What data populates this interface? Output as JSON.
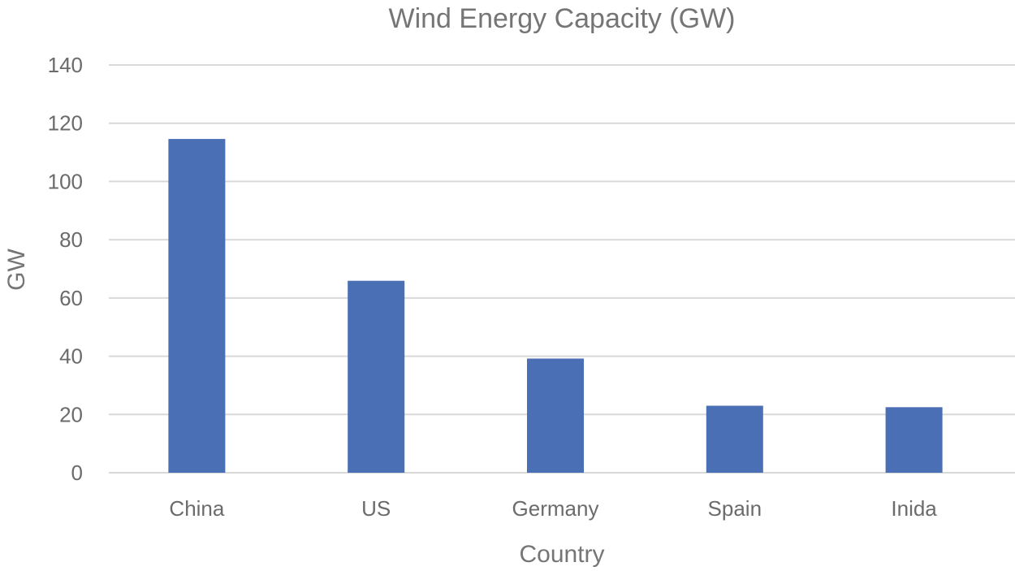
{
  "chart_data": {
    "type": "bar",
    "title": "Wind Energy Capacity (GW)",
    "xlabel": "Country",
    "ylabel": "GW",
    "categories": [
      "China",
      "US",
      "Germany",
      "Spain",
      "Inida"
    ],
    "values": [
      114.6,
      65.9,
      39.2,
      23.0,
      22.5
    ],
    "ylim": [
      0,
      140
    ],
    "yticks": [
      0,
      20,
      40,
      60,
      80,
      100,
      120,
      140
    ],
    "grid": true,
    "legend": "none",
    "bar_color": "#4a6fb5"
  }
}
